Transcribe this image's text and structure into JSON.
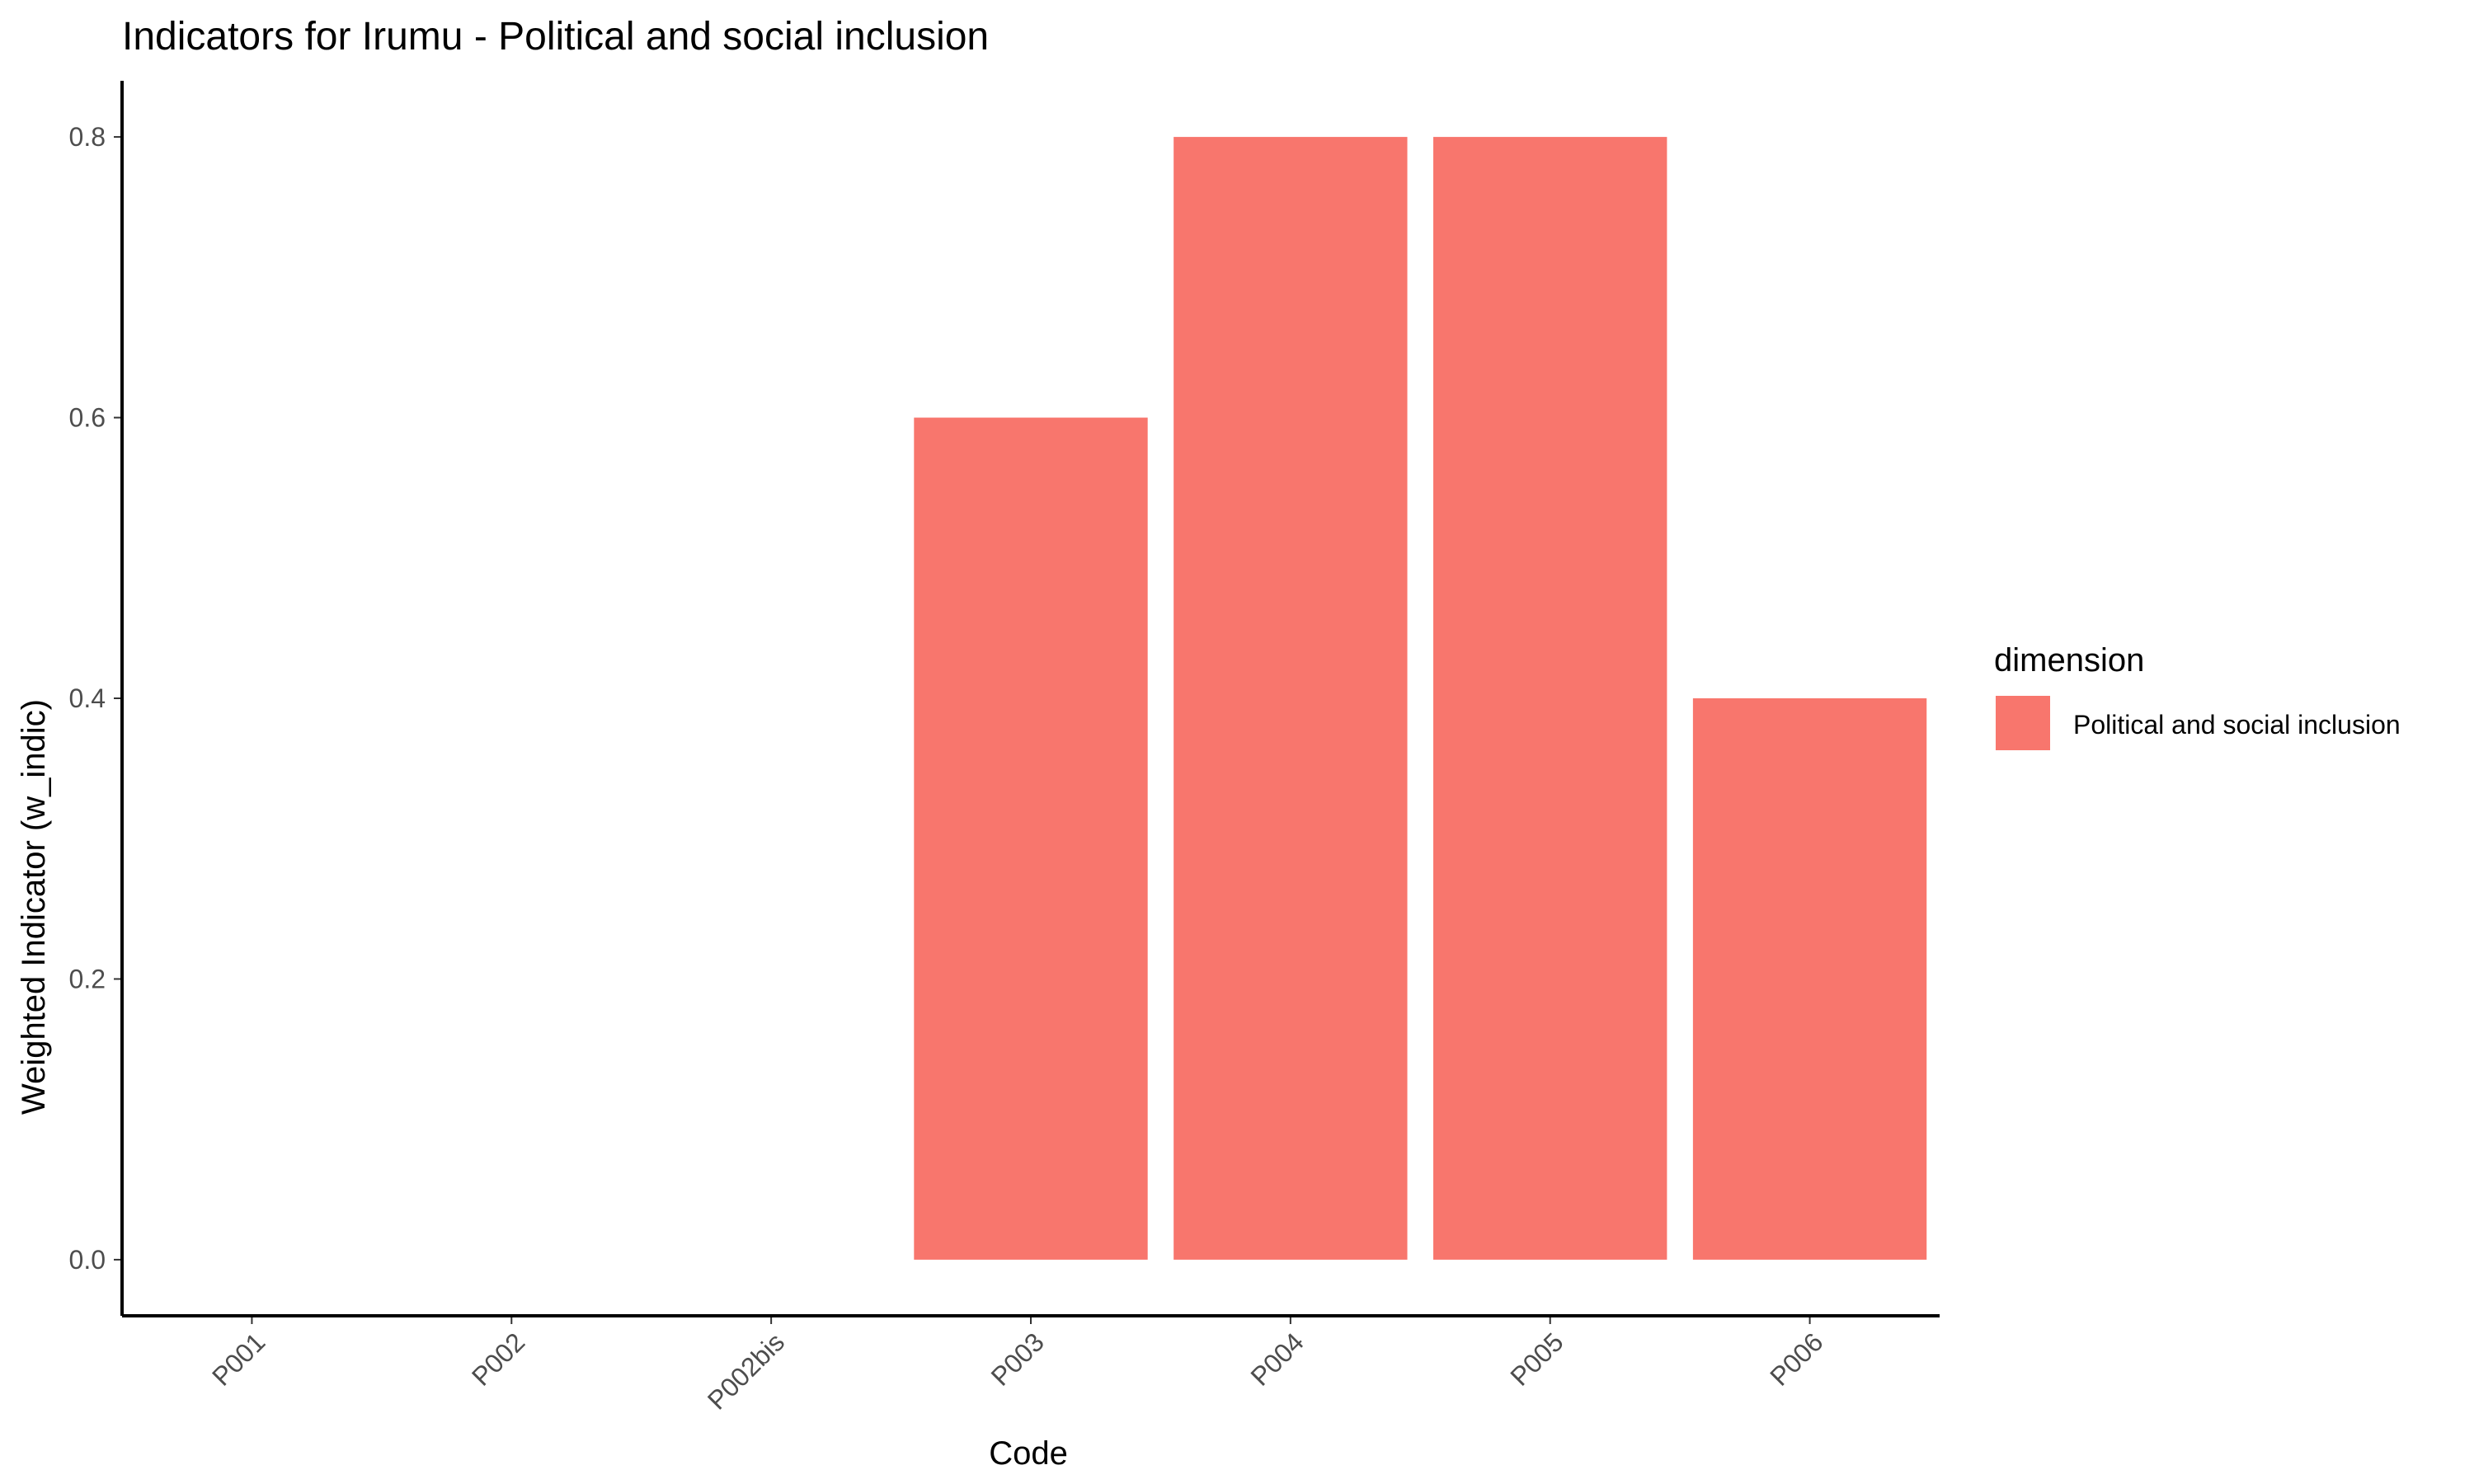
{
  "chart_data": {
    "type": "bar",
    "title": "Indicators for Irumu - Political and social inclusion",
    "xlabel": "Code",
    "ylabel": "Weighted Indicator (w_indic)",
    "categories": [
      "P001",
      "P002",
      "P002bis",
      "P003",
      "P004",
      "P005",
      "P006"
    ],
    "series": [
      {
        "name": "Political and social inclusion",
        "values": [
          0,
          0,
          0,
          0.6,
          0.8,
          0.8,
          0.4
        ],
        "color": "#f8766d"
      }
    ],
    "yticks": [
      0.0,
      0.2,
      0.4,
      0.6,
      0.8
    ],
    "ytick_labels": [
      "0.0",
      "0.2",
      "0.4",
      "0.6",
      "0.8"
    ],
    "ylim": [
      -0.04,
      0.84
    ],
    "grid": false,
    "legend": {
      "title": "dimension",
      "placement": "right",
      "entries": [
        "Political and social inclusion"
      ]
    }
  }
}
